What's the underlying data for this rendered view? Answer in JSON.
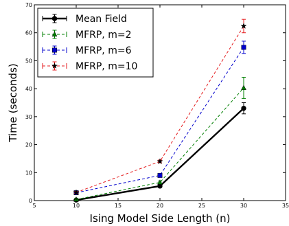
{
  "chart_data": {
    "type": "line",
    "title": "",
    "xlabel": "Ising Model Side Length (n)",
    "ylabel": "Time (seconds)",
    "xlim": [
      5,
      35
    ],
    "ylim": [
      0,
      70
    ],
    "xticks": [
      5,
      10,
      15,
      20,
      25,
      30,
      35
    ],
    "yticks": [
      0,
      10,
      20,
      30,
      40,
      50,
      60,
      70
    ],
    "x": [
      10,
      20,
      30
    ],
    "grid": false,
    "legend_position": "top-left",
    "series": [
      {
        "name": "Mean Field",
        "values": [
          0.2,
          5.2,
          33.0
        ],
        "errors": [
          0.3,
          0.5,
          2.0
        ],
        "color": "#000000",
        "linestyle": "solid",
        "marker": "circle"
      },
      {
        "name": "MFRP, m=2",
        "values": [
          0.4,
          6.5,
          40.3
        ],
        "errors": [
          0.3,
          0.5,
          3.8
        ],
        "color": "#007f00",
        "linestyle": "dashed",
        "marker": "triangle"
      },
      {
        "name": "MFRP, m=6",
        "values": [
          2.8,
          9.0,
          54.8
        ],
        "errors": [
          0.4,
          0.6,
          2.2
        ],
        "color": "#0000cc",
        "linestyle": "dashed",
        "marker": "square"
      },
      {
        "name": "MFRP, m=10",
        "values": [
          2.9,
          14.0,
          62.4
        ],
        "errors": [
          0.4,
          0.5,
          2.4
        ],
        "color": "#e41a1c",
        "linestyle": "dashed",
        "marker": "star"
      }
    ]
  }
}
